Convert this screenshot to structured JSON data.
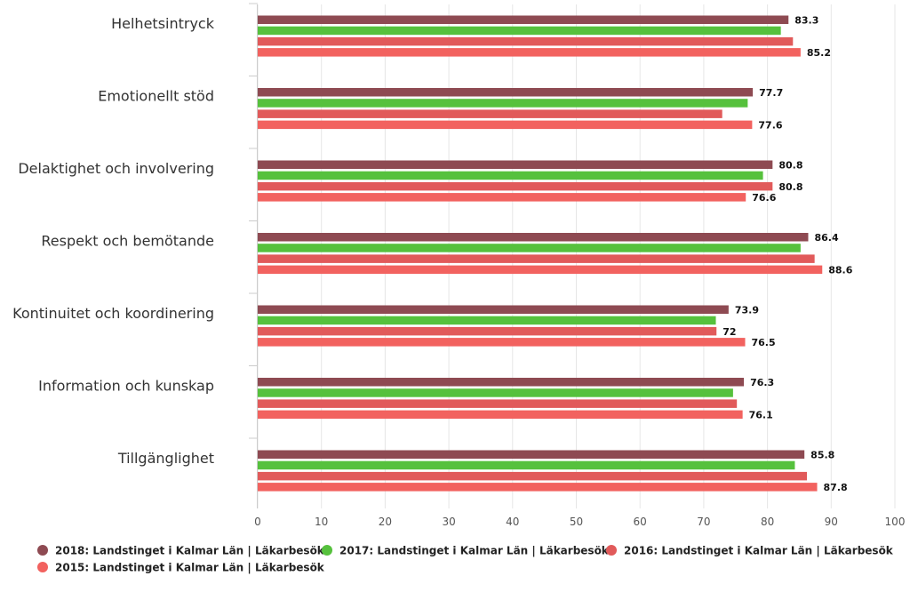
{
  "chart_data": {
    "type": "bar",
    "orientation": "horizontal",
    "title": "",
    "xlabel": "",
    "ylabel": "",
    "xlim": [
      0,
      100
    ],
    "ticks": [
      0,
      10,
      20,
      30,
      40,
      50,
      60,
      70,
      80,
      90,
      100
    ],
    "grid": true,
    "legend_position": "bottom",
    "categories": [
      "Helhetsintryck",
      "Emotionellt stöd",
      "Delaktighet och involvering",
      "Respekt och bemötande",
      "Kontinuitet och koordinering",
      "Information och kunskap",
      "Tillgänglighet"
    ],
    "series": [
      {
        "name": "2018: Landstinget i Kalmar Län | Läkarbesök",
        "color": "#8e4a52",
        "values": [
          83.3,
          77.7,
          80.8,
          86.4,
          73.9,
          76.3,
          85.8
        ],
        "labels": [
          "83.3",
          "77.7",
          "80.8",
          "86.4",
          "73.9",
          "76.3",
          "85.8"
        ]
      },
      {
        "name": "2017: Landstinget i Kalmar Län | Läkarbesök",
        "color": "#56c13d",
        "values": [
          82.1,
          76.9,
          79.3,
          85.2,
          71.9,
          74.6,
          84.3
        ],
        "labels": [
          "",
          "",
          "",
          "",
          "",
          "",
          ""
        ]
      },
      {
        "name": "2016: Landstinget i Kalmar Län | Läkarbesök",
        "color": "#e15a5a",
        "values": [
          84.0,
          72.9,
          80.8,
          87.4,
          72.0,
          75.2,
          86.2
        ],
        "labels": [
          "",
          "",
          "80.8",
          "",
          "72",
          "",
          ""
        ]
      },
      {
        "name": "2015: Landstinget i Kalmar Län | Läkarbesök",
        "color": "#f2625f",
        "values": [
          85.2,
          77.6,
          76.6,
          88.6,
          76.5,
          76.1,
          87.8
        ],
        "labels": [
          "85.2",
          "77.6",
          "76.6",
          "88.6",
          "76.5",
          "76.1",
          "87.8"
        ]
      }
    ]
  }
}
